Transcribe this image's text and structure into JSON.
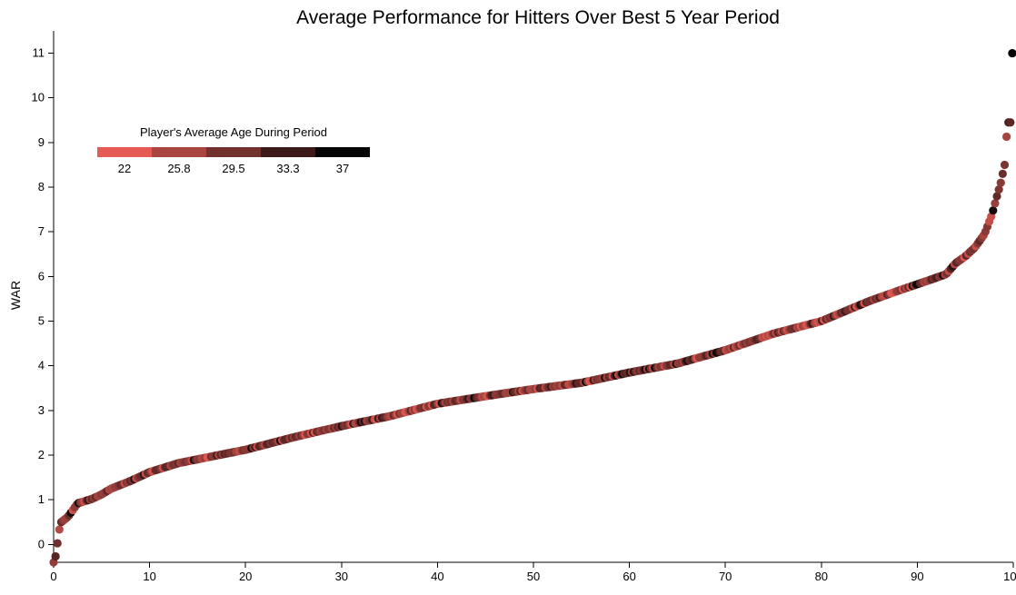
{
  "chart_data": {
    "type": "scatter",
    "title": "Average Performance for Hitters Over Best 5 Year Period",
    "xlabel": "",
    "ylabel": "WAR",
    "xlim": [
      0,
      100
    ],
    "ylim": [
      -0.4,
      11.5
    ],
    "x_ticks": [
      0,
      10,
      20,
      30,
      40,
      50,
      60,
      70,
      80,
      90,
      100
    ],
    "x_tick_labels": [
      "0",
      "10",
      "20",
      "30",
      "40",
      "50",
      "60",
      "70",
      "80",
      "90",
      "100"
    ],
    "y_ticks": [
      0,
      1,
      2,
      3,
      4,
      5,
      6,
      7,
      8,
      9,
      10,
      11
    ],
    "y_tick_labels": [
      "0",
      "1",
      "2",
      "3",
      "4",
      "5",
      "6",
      "7",
      "8",
      "9",
      "10",
      "11"
    ],
    "color_scale": {
      "title": "Player's Average Age During Period",
      "stops": [
        22,
        25.8,
        29.5,
        33.3,
        37
      ],
      "stop_labels": [
        "22",
        "25.8",
        "29.5",
        "33.3",
        "37"
      ],
      "colors": [
        "#e55a55",
        "#a84540",
        "#72302e",
        "#3d1a1a",
        "#050505"
      ]
    },
    "curve_points": [
      {
        "x": 0,
        "y": -0.4
      },
      {
        "x": 0.3,
        "y": -0.2
      },
      {
        "x": 0.5,
        "y": 0.25
      },
      {
        "x": 0.8,
        "y": 0.5
      },
      {
        "x": 1.5,
        "y": 0.62
      },
      {
        "x": 2.5,
        "y": 0.92
      },
      {
        "x": 4,
        "y": 1.02
      },
      {
        "x": 5,
        "y": 1.12
      },
      {
        "x": 6,
        "y": 1.25
      },
      {
        "x": 8,
        "y": 1.42
      },
      {
        "x": 10,
        "y": 1.62
      },
      {
        "x": 13,
        "y": 1.82
      },
      {
        "x": 16,
        "y": 1.95
      },
      {
        "x": 20,
        "y": 2.12
      },
      {
        "x": 25,
        "y": 2.4
      },
      {
        "x": 30,
        "y": 2.65
      },
      {
        "x": 35,
        "y": 2.87
      },
      {
        "x": 40,
        "y": 3.15
      },
      {
        "x": 45,
        "y": 3.32
      },
      {
        "x": 50,
        "y": 3.48
      },
      {
        "x": 55,
        "y": 3.62
      },
      {
        "x": 60,
        "y": 3.85
      },
      {
        "x": 65,
        "y": 4.05
      },
      {
        "x": 70,
        "y": 4.35
      },
      {
        "x": 75,
        "y": 4.72
      },
      {
        "x": 80,
        "y": 5.0
      },
      {
        "x": 85,
        "y": 5.45
      },
      {
        "x": 88,
        "y": 5.68
      },
      {
        "x": 91,
        "y": 5.9
      },
      {
        "x": 93,
        "y": 6.05
      },
      {
        "x": 94,
        "y": 6.3
      },
      {
        "x": 95,
        "y": 6.45
      },
      {
        "x": 96,
        "y": 6.65
      },
      {
        "x": 97,
        "y": 6.95
      },
      {
        "x": 97.8,
        "y": 7.4
      },
      {
        "x": 98.3,
        "y": 7.8
      },
      {
        "x": 98.7,
        "y": 8.1
      },
      {
        "x": 99.1,
        "y": 8.5
      },
      {
        "x": 99.4,
        "y": 9.45
      },
      {
        "x": 99.7,
        "y": 9.45
      },
      {
        "x": 99.9,
        "y": 11.0
      }
    ],
    "point_count": 500
  }
}
